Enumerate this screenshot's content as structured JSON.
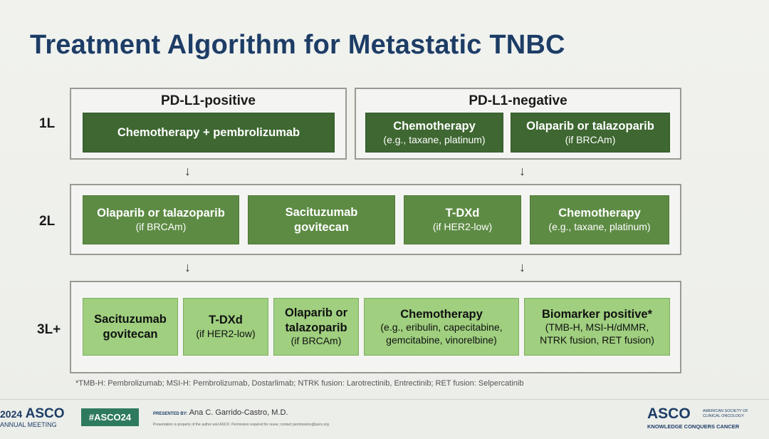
{
  "title": "Treatment Algorithm for Metastatic TNBC",
  "row_labels": {
    "first": "1L",
    "second": "2L",
    "third": "3L+"
  },
  "groups": {
    "positive": "PD-L1-positive",
    "negative": "PD-L1-negative"
  },
  "line1": {
    "positive_box": "Chemotherapy + pembrolizumab",
    "negative_boxes": [
      {
        "title": "Chemotherapy",
        "sub": "(e.g., taxane, platinum)"
      },
      {
        "title": "Olaparib or talazoparib",
        "sub": "(if BRCAm)"
      }
    ]
  },
  "line2": [
    {
      "title": "Olaparib or talazoparib",
      "sub": "(if BRCAm)"
    },
    {
      "title": "Sacituzumab govitecan",
      "sub": ""
    },
    {
      "title": "T-DXd",
      "sub": "(if HER2-low)"
    },
    {
      "title": "Chemotherapy",
      "sub": "(e.g., taxane, platinum)"
    }
  ],
  "line3": [
    {
      "title": "Sacituzumab govitecan",
      "sub": ""
    },
    {
      "title": "T-DXd",
      "sub": "(if HER2-low)"
    },
    {
      "title": "Olaparib or talazoparib",
      "sub": "(if BRCAm)"
    },
    {
      "title": "Chemotherapy",
      "sub": "(e.g., eribulin, capecitabine, gemcitabine, vinorelbine)"
    },
    {
      "title": "Biomarker positive*",
      "sub": "(TMB-H, MSI-H/dMMR, NTRK fusion, RET fusion)"
    }
  ],
  "arrow_glyph": "↓",
  "footnote": "*TMB-H: Pembrolizumab; MSI-H: Pembrolizumab, Dostarlimab; NTRK fusion: Larotrectinib, Entrectinib; RET fusion: Selpercatinib",
  "footer": {
    "meeting_year": "2024",
    "meeting_org": "ASCO",
    "meeting_label": "ANNUAL MEETING",
    "hashtag": "#ASCO24",
    "presented_by_label": "PRESENTED BY:",
    "presenter": "Ana C. Garrido-Castro, M.D.",
    "disclaimer": "Presentation is property of the author and ASCO. Permission required for reuse; contact permissions@asco.org",
    "logo_text": "ASCO",
    "logo_org_line1": "AMERICAN SOCIETY OF",
    "logo_org_line2": "CLINICAL ONCOLOGY",
    "tagline": "KNOWLEDGE CONQUERS CANCER"
  },
  "colors": {
    "title": "#1d3d66",
    "dark_green": "#3e6731",
    "mid_green": "#5d8b44",
    "light_green": "#9fcf7f",
    "hashtag_bg": "#2e7a5f"
  }
}
